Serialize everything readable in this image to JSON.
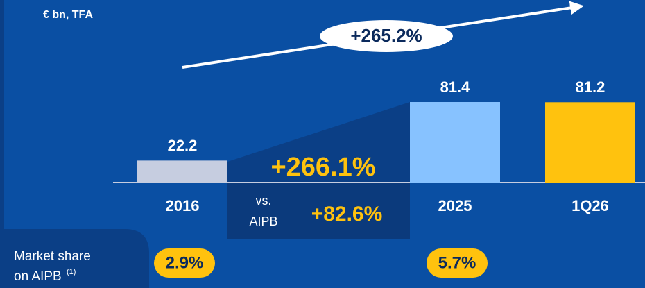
{
  "chart_data": {
    "type": "bar",
    "unit_label": "€ bn, TFA",
    "categories": [
      "2016",
      "2025",
      "1Q26"
    ],
    "values": [
      22.2,
      81.4,
      81.2
    ],
    "colors": [
      "#c6cde0",
      "#87c2ff",
      "#ffc20e"
    ],
    "growth_total": "+265.2%",
    "growth_period": "+266.1%",
    "vs_label": [
      "vs.",
      "AIPB"
    ],
    "vs_growth": "+82.6%",
    "market_share_label": [
      "Market share",
      "on AIPB"
    ],
    "market_share_note": "(1)",
    "market_share": [
      {
        "category": "2016",
        "label": "2.9%"
      },
      {
        "category": "2025",
        "label": "5.7%"
      }
    ]
  }
}
